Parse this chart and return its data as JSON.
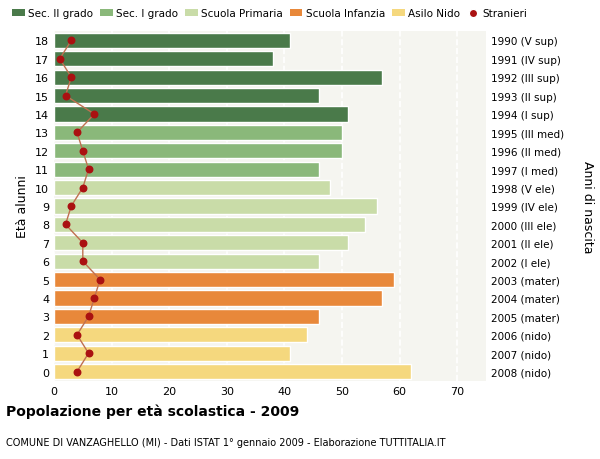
{
  "ages": [
    0,
    1,
    2,
    3,
    4,
    5,
    6,
    7,
    8,
    9,
    10,
    11,
    12,
    13,
    14,
    15,
    16,
    17,
    18
  ],
  "bar_values": [
    62,
    41,
    44,
    46,
    57,
    59,
    46,
    51,
    54,
    56,
    48,
    46,
    50,
    50,
    51,
    46,
    57,
    38,
    41
  ],
  "stranieri": [
    4,
    6,
    4,
    6,
    7,
    8,
    5,
    5,
    2,
    3,
    5,
    6,
    5,
    4,
    7,
    2,
    3,
    1,
    3
  ],
  "right_labels": [
    "2008 (nido)",
    "2007 (nido)",
    "2006 (nido)",
    "2005 (mater)",
    "2004 (mater)",
    "2003 (mater)",
    "2002 (I ele)",
    "2001 (II ele)",
    "2000 (III ele)",
    "1999 (IV ele)",
    "1998 (V ele)",
    "1997 (I med)",
    "1996 (II med)",
    "1995 (III med)",
    "1994 (I sup)",
    "1993 (II sup)",
    "1992 (III sup)",
    "1991 (IV sup)",
    "1990 (V sup)"
  ],
  "bar_colors": [
    "#f5d87e",
    "#f5d87e",
    "#f5d87e",
    "#e8883a",
    "#e8883a",
    "#e8883a",
    "#c9dca8",
    "#c9dca8",
    "#c9dca8",
    "#c9dca8",
    "#c9dca8",
    "#8ab87a",
    "#8ab87a",
    "#8ab87a",
    "#4a7a4a",
    "#4a7a4a",
    "#4a7a4a",
    "#4a7a4a",
    "#4a7a4a"
  ],
  "legend_labels": [
    "Sec. II grado",
    "Sec. I grado",
    "Scuola Primaria",
    "Scuola Infanzia",
    "Asilo Nido",
    "Stranieri"
  ],
  "legend_colors": [
    "#4a7a4a",
    "#8ab87a",
    "#c9dca8",
    "#e8883a",
    "#f5d87e",
    "#aa1111"
  ],
  "stranieri_dot_color": "#aa1111",
  "stranieri_line_color": "#c07050",
  "ylabel": "Età alunni",
  "right_ylabel": "Anni di nascita",
  "title_bold": "Popolazione per età scolastica - 2009",
  "title_sub": "COMUNE DI VANZAGHELLO (MI) - Dati ISTAT 1° gennaio 2009 - Elaborazione TUTTITALIA.IT",
  "xlim": [
    0,
    75
  ],
  "ylim": [
    -0.5,
    18.5
  ],
  "bg_color": "#f5f5f0"
}
